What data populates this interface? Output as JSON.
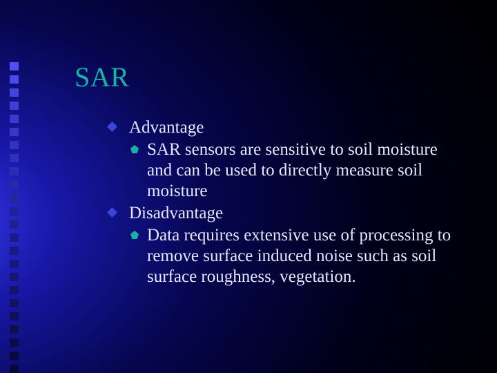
{
  "slide": {
    "title": "SAR",
    "title_color": "#19b3a6",
    "body_color": "#e6e6ff",
    "title_fontsize": 40,
    "body_fontsize": 25,
    "background": {
      "gradient_center_color": "#3a3af0",
      "gradient_outer_color": "#000000"
    },
    "decor_strip": {
      "square_count": 24,
      "square_size": 13,
      "colors": [
        "#5050f0",
        "#4a4ae8",
        "#4444e0",
        "#4040d8",
        "#3a3ad0",
        "#3838c8",
        "#3232c0",
        "#3030b8",
        "#2c2cb0",
        "#2828a8",
        "#2626a0",
        "#222298",
        "#202090",
        "#1c1c88",
        "#1a1a80",
        "#181878",
        "#161670",
        "#141468",
        "#121260",
        "#101058",
        "#0e0e50",
        "#0c0c48",
        "#0a0a40",
        "#080838"
      ]
    },
    "bullets": {
      "l1_shape": "diamond",
      "l1_color": "#3a46d8",
      "l2_shape": "pentagon",
      "l2_color": "#19b3a6"
    },
    "items": [
      {
        "label": "Advantage",
        "sub": [
          {
            "text": "SAR sensors are sensitive to soil moisture and can be used to directly measure soil moisture"
          }
        ]
      },
      {
        "label": "Disadvantage",
        "sub": [
          {
            "text": "Data requires extensive use of processing to remove surface induced noise such as soil surface roughness, vegetation."
          }
        ]
      }
    ]
  }
}
